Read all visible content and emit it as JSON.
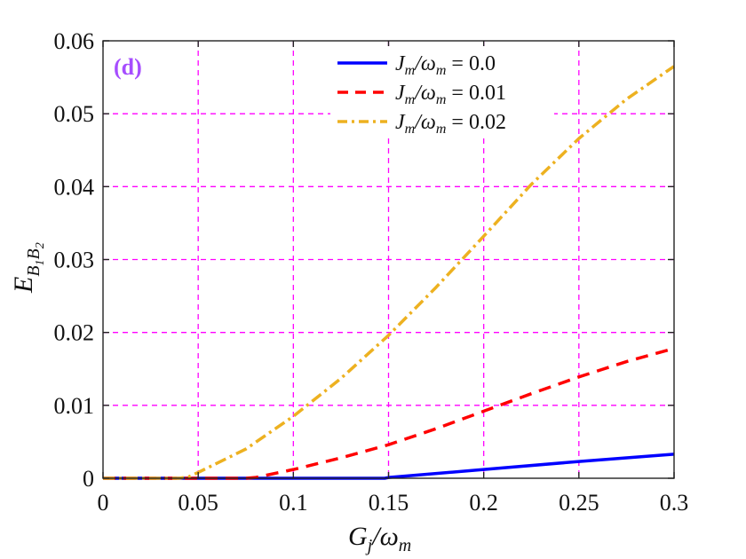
{
  "chart_data": {
    "type": "line",
    "panel_label": "(d)",
    "xlabel": "G_j/ω_m",
    "ylabel": "E_B1B2",
    "xlim": [
      0,
      0.3
    ],
    "ylim": [
      0,
      0.06
    ],
    "xticks": [
      0,
      0.05,
      0.1,
      0.15,
      0.2,
      0.25,
      0.3
    ],
    "xtick_labels": [
      "0",
      "0.05",
      "0.1",
      "0.15",
      "0.2",
      "0.25",
      "0.3"
    ],
    "yticks": [
      0,
      0.01,
      0.02,
      0.03,
      0.04,
      0.05,
      0.06
    ],
    "ytick_labels": [
      "0",
      "0.01",
      "0.02",
      "0.03",
      "0.04",
      "0.05",
      "0.06"
    ],
    "grid": true,
    "grid_color": "#ff00ff",
    "legend_position": "top-right",
    "series": [
      {
        "name": "J_m/ω_m = 0.0",
        "color": "#0000ff",
        "style": "solid",
        "x": [
          0,
          0.05,
          0.1,
          0.148,
          0.15,
          0.2,
          0.25,
          0.3
        ],
        "y": [
          0,
          0,
          0,
          0,
          0.0001,
          0.0012,
          0.0023,
          0.0033
        ]
      },
      {
        "name": "J_m/ω_m = 0.01",
        "color": "#ff0000",
        "style": "dashed",
        "x": [
          0,
          0.05,
          0.075,
          0.08,
          0.1,
          0.125,
          0.15,
          0.175,
          0.2,
          0.225,
          0.25,
          0.275,
          0.3
        ],
        "y": [
          0,
          0,
          0,
          0.0001,
          0.0012,
          0.0028,
          0.0046,
          0.0068,
          0.0092,
          0.0116,
          0.0139,
          0.016,
          0.0178
        ]
      },
      {
        "name": "J_m/ω_m = 0.02",
        "color": "#edb120",
        "style": "dashdot",
        "x": [
          0,
          0.04,
          0.045,
          0.05,
          0.075,
          0.1,
          0.125,
          0.15,
          0.175,
          0.2,
          0.225,
          0.25,
          0.275,
          0.3
        ],
        "y": [
          0,
          0,
          0.0002,
          0.0008,
          0.004,
          0.0085,
          0.0137,
          0.0196,
          0.0262,
          0.0332,
          0.0403,
          0.0466,
          0.052,
          0.0565
        ]
      }
    ]
  }
}
